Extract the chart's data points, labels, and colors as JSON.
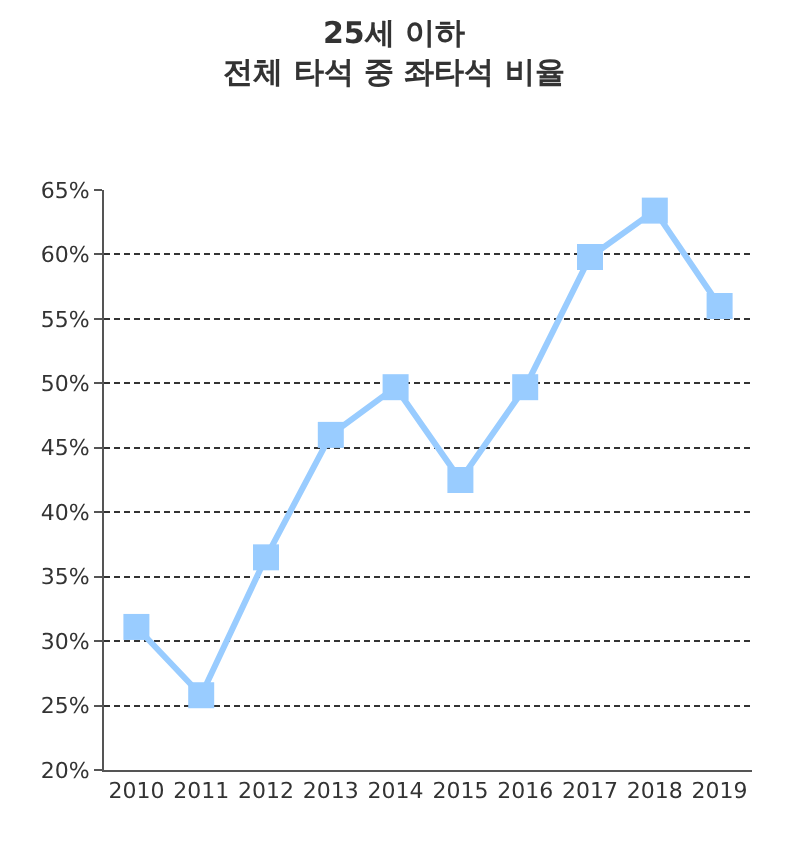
{
  "chart_data": {
    "type": "line",
    "title": "25세 이하\n전체 타석 중 좌타석 비율",
    "categories": [
      "2010",
      "2011",
      "2012",
      "2013",
      "2014",
      "2015",
      "2016",
      "2017",
      "2018",
      "2019"
    ],
    "series": [
      {
        "color": "#99ccff",
        "values": [
          31.1,
          25.8,
          36.5,
          46.0,
          49.7,
          42.5,
          49.7,
          59.8,
          63.4,
          56.0
        ]
      }
    ],
    "ylim": [
      20,
      65
    ],
    "yticks": [
      {
        "value": 20,
        "label": "20%"
      },
      {
        "value": 25,
        "label": "25%"
      },
      {
        "value": 30,
        "label": "30%"
      },
      {
        "value": 35,
        "label": "35%"
      },
      {
        "value": 40,
        "label": "40%"
      },
      {
        "value": 45,
        "label": "45%"
      },
      {
        "value": 50,
        "label": "50%"
      },
      {
        "value": 55,
        "label": "55%"
      },
      {
        "value": 60,
        "label": "60%"
      },
      {
        "value": 65,
        "label": "65%"
      }
    ],
    "grid": "y",
    "marker": "square",
    "line_style": "solid"
  }
}
